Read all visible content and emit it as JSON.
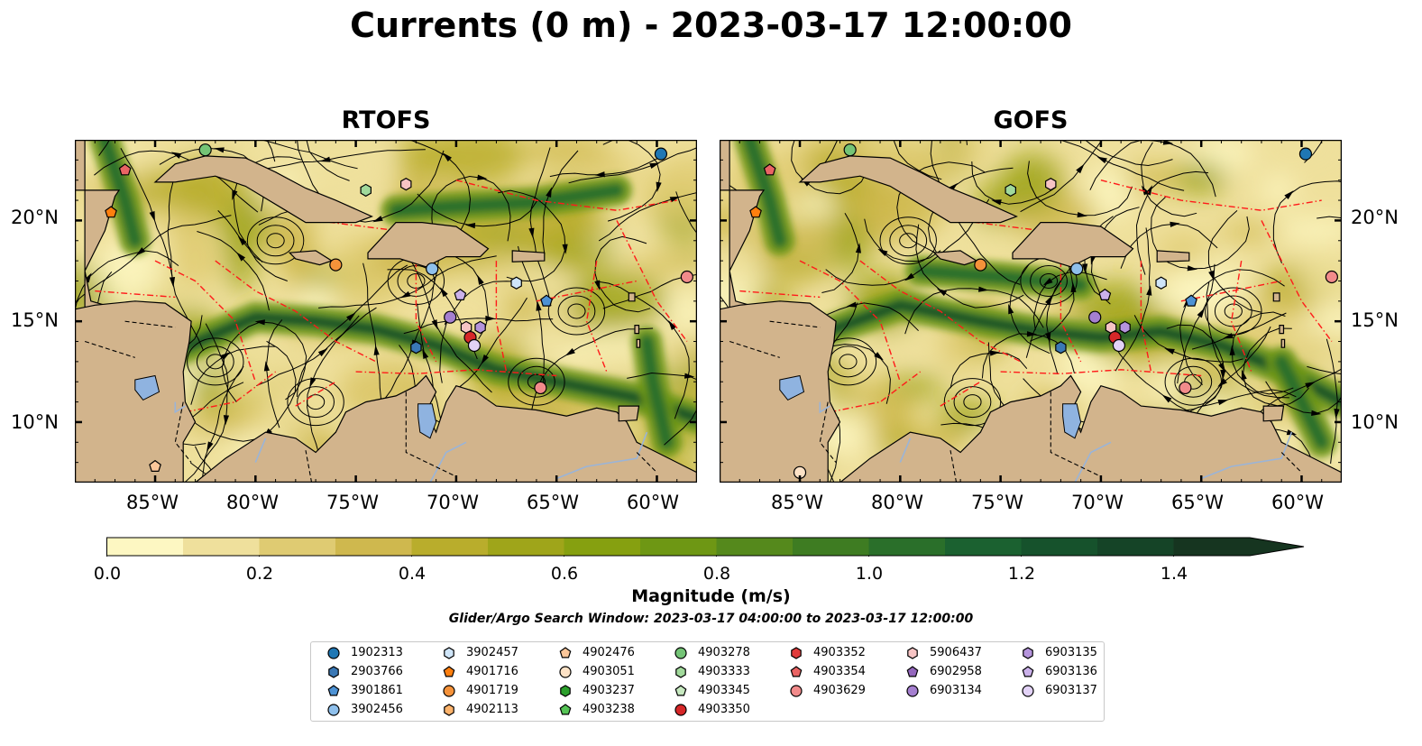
{
  "title": "Currents (0 m) - 2023-03-17 12:00:00",
  "panels": [
    {
      "title": "RTOFS"
    },
    {
      "title": "GOFS"
    }
  ],
  "axes": {
    "lon_labels": [
      "85°W",
      "80°W",
      "75°W",
      "70°W",
      "65°W",
      "60°W"
    ],
    "lat_labels": [
      "20°N",
      "15°N",
      "10°N"
    ],
    "lon_range": [
      -89,
      -58
    ],
    "lat_range": [
      7,
      24
    ]
  },
  "colorbar": {
    "label": "Magnitude (m/s)",
    "ticks": [
      "0.0",
      "0.2",
      "0.4",
      "0.6",
      "0.8",
      "1.0",
      "1.2",
      "1.4"
    ],
    "range": [
      0,
      1.5
    ],
    "extend": "max",
    "colors": [
      "#fdf7c2",
      "#efe09c",
      "#dfcb72",
      "#cfb84e",
      "#b9ad2c",
      "#9fa51a",
      "#86a010",
      "#6e9714",
      "#55891c",
      "#3e7c22",
      "#2a6f2a",
      "#1b6130",
      "#16522c",
      "#154427",
      "#163520"
    ]
  },
  "search_window": "Glider/Argo Search Window: 2023-03-17 04:00:00 to 2023-03-17 12:00:00",
  "legend": {
    "columns": [
      [
        {
          "id": "1902313",
          "shape": "circle",
          "color": "#1f77b4"
        },
        {
          "id": "2903766",
          "shape": "hexagon",
          "color": "#3a78b5"
        },
        {
          "id": "3901861",
          "shape": "pentagon",
          "color": "#4d92d4"
        },
        {
          "id": "3902456",
          "shape": "circle",
          "color": "#8fc0ec"
        }
      ],
      [
        {
          "id": "3902457",
          "shape": "hexagon",
          "color": "#cfe5f8"
        },
        {
          "id": "4901716",
          "shape": "pentagon",
          "color": "#ff7f0e"
        },
        {
          "id": "4901719",
          "shape": "circle",
          "color": "#f5923a"
        },
        {
          "id": "4902113",
          "shape": "hexagon",
          "color": "#fdb36b"
        }
      ],
      [
        {
          "id": "4902476",
          "shape": "pentagon",
          "color": "#fcc79a"
        },
        {
          "id": "4903051",
          "shape": "circle",
          "color": "#fde2c6"
        },
        {
          "id": "4903237",
          "shape": "hexagon",
          "color": "#2ca02c"
        },
        {
          "id": "4903238",
          "shape": "pentagon",
          "color": "#55c455"
        }
      ],
      [
        {
          "id": "4903278",
          "shape": "circle",
          "color": "#74c476"
        },
        {
          "id": "4903333",
          "shape": "hexagon",
          "color": "#a1d99b"
        },
        {
          "id": "4903345",
          "shape": "pentagon",
          "color": "#c7e9c0"
        },
        {
          "id": "4903350",
          "shape": "circle",
          "color": "#d62728"
        }
      ],
      [
        {
          "id": "4903352",
          "shape": "hexagon",
          "color": "#e03b3b"
        },
        {
          "id": "4903354",
          "shape": "pentagon",
          "color": "#ea6464"
        },
        {
          "id": "4903629",
          "shape": "circle",
          "color": "#f28b8b"
        }
      ],
      [
        {
          "id": "5906437",
          "shape": "hexagon",
          "color": "#f7c4c4"
        },
        {
          "id": "6902958",
          "shape": "pentagon",
          "color": "#9467bd"
        },
        {
          "id": "6903134",
          "shape": "circle",
          "color": "#a57fd0"
        }
      ],
      [
        {
          "id": "6903135",
          "shape": "hexagon",
          "color": "#b594dc"
        },
        {
          "id": "6903136",
          "shape": "pentagon",
          "color": "#cbb1ea"
        },
        {
          "id": "6903137",
          "shape": "circle",
          "color": "#e2d2f6"
        }
      ]
    ]
  },
  "map_data": {
    "floats": {
      "RTOFS": [
        {
          "id": "4903278",
          "lon": -82.5,
          "lat": 23.5
        },
        {
          "id": "1902313",
          "lon": -59.8,
          "lat": 23.3
        },
        {
          "id": "4903354",
          "lon": -86.5,
          "lat": 22.5
        },
        {
          "id": "4903333",
          "lon": -74.5,
          "lat": 21.5
        },
        {
          "id": "5906437",
          "lon": -72.5,
          "lat": 21.8
        },
        {
          "id": "4901716",
          "lon": -87.2,
          "lat": 20.4
        },
        {
          "id": "4901719",
          "lon": -76.0,
          "lat": 17.8
        },
        {
          "id": "3902456",
          "lon": -71.2,
          "lat": 17.6
        },
        {
          "id": "4903629",
          "lon": -58.5,
          "lat": 17.2
        },
        {
          "id": "3902457",
          "lon": -67.0,
          "lat": 16.9
        },
        {
          "id": "6903136",
          "lon": -69.8,
          "lat": 16.3
        },
        {
          "id": "3901861",
          "lon": -65.5,
          "lat": 16.0
        },
        {
          "id": "6903134",
          "lon": -70.3,
          "lat": 15.2
        },
        {
          "id": "5906437",
          "lon": -69.5,
          "lat": 14.7
        },
        {
          "id": "6903135",
          "lon": -68.8,
          "lat": 14.7
        },
        {
          "id": "4903350",
          "lon": -69.3,
          "lat": 14.2
        },
        {
          "id": "6903137",
          "lon": -69.1,
          "lat": 13.8
        },
        {
          "id": "2903766",
          "lon": -72.0,
          "lat": 13.7
        },
        {
          "id": "4903629",
          "lon": -65.8,
          "lat": 11.7
        },
        {
          "id": "4902476",
          "lon": -85.0,
          "lat": 7.8
        }
      ],
      "GOFS": [
        {
          "id": "4903278",
          "lon": -82.5,
          "lat": 23.5
        },
        {
          "id": "1902313",
          "lon": -59.8,
          "lat": 23.3
        },
        {
          "id": "4903354",
          "lon": -86.5,
          "lat": 22.5
        },
        {
          "id": "4903333",
          "lon": -74.5,
          "lat": 21.5
        },
        {
          "id": "5906437",
          "lon": -72.5,
          "lat": 21.8
        },
        {
          "id": "4901716",
          "lon": -87.2,
          "lat": 20.4
        },
        {
          "id": "4901719",
          "lon": -76.0,
          "lat": 17.8
        },
        {
          "id": "3902456",
          "lon": -71.2,
          "lat": 17.6
        },
        {
          "id": "4903629",
          "lon": -58.5,
          "lat": 17.2
        },
        {
          "id": "3902457",
          "lon": -67.0,
          "lat": 16.9
        },
        {
          "id": "6903136",
          "lon": -69.8,
          "lat": 16.3
        },
        {
          "id": "3901861",
          "lon": -65.5,
          "lat": 16.0
        },
        {
          "id": "6903134",
          "lon": -70.3,
          "lat": 15.2
        },
        {
          "id": "5906437",
          "lon": -69.5,
          "lat": 14.7
        },
        {
          "id": "6903135",
          "lon": -68.8,
          "lat": 14.7
        },
        {
          "id": "4903350",
          "lon": -69.3,
          "lat": 14.2
        },
        {
          "id": "6903137",
          "lon": -69.1,
          "lat": 13.8
        },
        {
          "id": "2903766",
          "lon": -72.0,
          "lat": 13.7
        },
        {
          "id": "4903629",
          "lon": -65.8,
          "lat": 11.7
        },
        {
          "id": "4903051",
          "lon": -85.0,
          "lat": 7.5
        }
      ]
    }
  }
}
